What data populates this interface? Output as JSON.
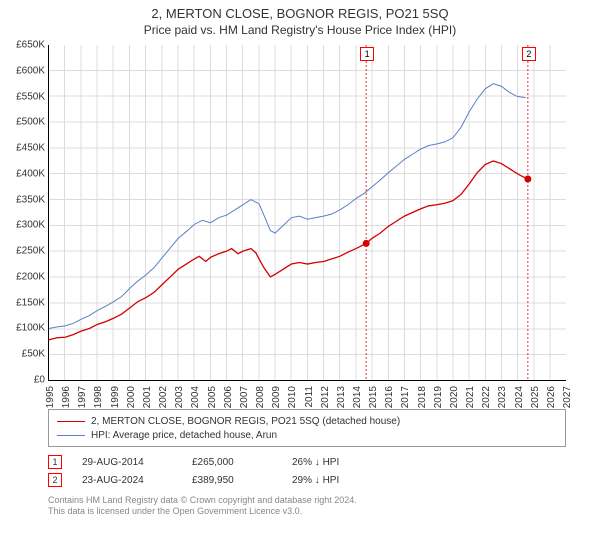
{
  "titles": {
    "line1": "2, MERTON CLOSE, BOGNOR REGIS, PO21 5SQ",
    "line2": "Price paid vs. HM Land Registry's House Price Index (HPI)"
  },
  "chart": {
    "type": "line",
    "background_color": "#ffffff",
    "grid_color": "#dcdcdc",
    "axis_color": "#000000",
    "x": {
      "min": 1995,
      "max": 2027,
      "tick_step": 1,
      "labels_rotated": true
    },
    "y": {
      "min": 0,
      "max": 650000,
      "tick_step": 50000,
      "prefix": "£",
      "format_k": true
    },
    "series": [
      {
        "name": "property",
        "label": "2, MERTON CLOSE, BOGNOR REGIS, PO21 5SQ (detached house)",
        "color": "#d40000",
        "width": 1.3,
        "points": [
          [
            1995.0,
            78
          ],
          [
            1995.5,
            82
          ],
          [
            1996.0,
            83
          ],
          [
            1996.5,
            88
          ],
          [
            1997.0,
            95
          ],
          [
            1997.5,
            100
          ],
          [
            1998.0,
            108
          ],
          [
            1998.5,
            113
          ],
          [
            1999.0,
            120
          ],
          [
            1999.5,
            128
          ],
          [
            2000.0,
            140
          ],
          [
            2000.5,
            152
          ],
          [
            2001.0,
            160
          ],
          [
            2001.5,
            170
          ],
          [
            2002.0,
            185
          ],
          [
            2002.5,
            200
          ],
          [
            2003.0,
            215
          ],
          [
            2003.5,
            225
          ],
          [
            2004.0,
            235
          ],
          [
            2004.3,
            240
          ],
          [
            2004.7,
            230
          ],
          [
            2005.0,
            238
          ],
          [
            2005.5,
            245
          ],
          [
            2006.0,
            250
          ],
          [
            2006.3,
            255
          ],
          [
            2006.7,
            245
          ],
          [
            2007.0,
            250
          ],
          [
            2007.5,
            255
          ],
          [
            2007.8,
            247
          ],
          [
            2008.0,
            235
          ],
          [
            2008.3,
            218
          ],
          [
            2008.7,
            200
          ],
          [
            2009.0,
            205
          ],
          [
            2009.5,
            215
          ],
          [
            2010.0,
            225
          ],
          [
            2010.5,
            228
          ],
          [
            2011.0,
            225
          ],
          [
            2011.5,
            228
          ],
          [
            2012.0,
            230
          ],
          [
            2012.5,
            235
          ],
          [
            2013.0,
            240
          ],
          [
            2013.5,
            248
          ],
          [
            2014.0,
            255
          ],
          [
            2014.63,
            265
          ],
          [
            2015.0,
            275
          ],
          [
            2015.5,
            285
          ],
          [
            2016.0,
            298
          ],
          [
            2016.5,
            308
          ],
          [
            2017.0,
            318
          ],
          [
            2017.5,
            325
          ],
          [
            2018.0,
            332
          ],
          [
            2018.5,
            338
          ],
          [
            2019.0,
            340
          ],
          [
            2019.5,
            343
          ],
          [
            2020.0,
            348
          ],
          [
            2020.5,
            360
          ],
          [
            2021.0,
            380
          ],
          [
            2021.5,
            402
          ],
          [
            2022.0,
            418
          ],
          [
            2022.5,
            425
          ],
          [
            2023.0,
            420
          ],
          [
            2023.5,
            410
          ],
          [
            2024.0,
            400
          ],
          [
            2024.3,
            395
          ],
          [
            2024.64,
            390
          ]
        ]
      },
      {
        "name": "hpi",
        "label": "HPI: Average price, detached house, Arun",
        "color": "#5b7fc7",
        "width": 1.0,
        "points": [
          [
            1995.0,
            100
          ],
          [
            1995.5,
            103
          ],
          [
            1996.0,
            105
          ],
          [
            1996.5,
            110
          ],
          [
            1997.0,
            118
          ],
          [
            1997.5,
            125
          ],
          [
            1998.0,
            135
          ],
          [
            1998.5,
            143
          ],
          [
            1999.0,
            152
          ],
          [
            1999.5,
            162
          ],
          [
            2000.0,
            178
          ],
          [
            2000.5,
            192
          ],
          [
            2001.0,
            204
          ],
          [
            2001.5,
            218
          ],
          [
            2002.0,
            237
          ],
          [
            2002.5,
            256
          ],
          [
            2003.0,
            275
          ],
          [
            2003.5,
            288
          ],
          [
            2004.0,
            302
          ],
          [
            2004.5,
            310
          ],
          [
            2005.0,
            305
          ],
          [
            2005.5,
            315
          ],
          [
            2006.0,
            320
          ],
          [
            2006.5,
            330
          ],
          [
            2007.0,
            340
          ],
          [
            2007.5,
            350
          ],
          [
            2008.0,
            342
          ],
          [
            2008.3,
            320
          ],
          [
            2008.7,
            290
          ],
          [
            2009.0,
            285
          ],
          [
            2009.5,
            300
          ],
          [
            2010.0,
            315
          ],
          [
            2010.5,
            318
          ],
          [
            2011.0,
            312
          ],
          [
            2011.5,
            315
          ],
          [
            2012.0,
            318
          ],
          [
            2012.5,
            322
          ],
          [
            2013.0,
            330
          ],
          [
            2013.5,
            340
          ],
          [
            2014.0,
            352
          ],
          [
            2014.5,
            362
          ],
          [
            2015.0,
            375
          ],
          [
            2015.5,
            388
          ],
          [
            2016.0,
            402
          ],
          [
            2016.5,
            415
          ],
          [
            2017.0,
            428
          ],
          [
            2017.5,
            438
          ],
          [
            2018.0,
            448
          ],
          [
            2018.5,
            455
          ],
          [
            2019.0,
            458
          ],
          [
            2019.5,
            462
          ],
          [
            2020.0,
            470
          ],
          [
            2020.5,
            490
          ],
          [
            2021.0,
            520
          ],
          [
            2021.5,
            545
          ],
          [
            2022.0,
            565
          ],
          [
            2022.5,
            575
          ],
          [
            2023.0,
            570
          ],
          [
            2023.5,
            558
          ],
          [
            2024.0,
            550
          ],
          [
            2024.5,
            548
          ]
        ]
      }
    ],
    "markers": [
      {
        "id": "1",
        "year": 2014.63,
        "value_k": 265,
        "dashed_color": "#d40000"
      },
      {
        "id": "2",
        "year": 2024.64,
        "value_k": 390,
        "dashed_color": "#d40000"
      }
    ]
  },
  "legend": {
    "rows": [
      {
        "color": "#d40000",
        "label": "2, MERTON CLOSE, BOGNOR REGIS, PO21 5SQ (detached house)"
      },
      {
        "color": "#5b7fc7",
        "label": "HPI: Average price, detached house, Arun"
      }
    ]
  },
  "events": [
    {
      "id": "1",
      "date": "29-AUG-2014",
      "price": "£265,000",
      "delta": "26% ↓ HPI"
    },
    {
      "id": "2",
      "date": "23-AUG-2024",
      "price": "£389,950",
      "delta": "29% ↓ HPI"
    }
  ],
  "footer": {
    "line1": "Contains HM Land Registry data © Crown copyright and database right 2024.",
    "line2": "This data is licensed under the Open Government Licence v3.0."
  }
}
